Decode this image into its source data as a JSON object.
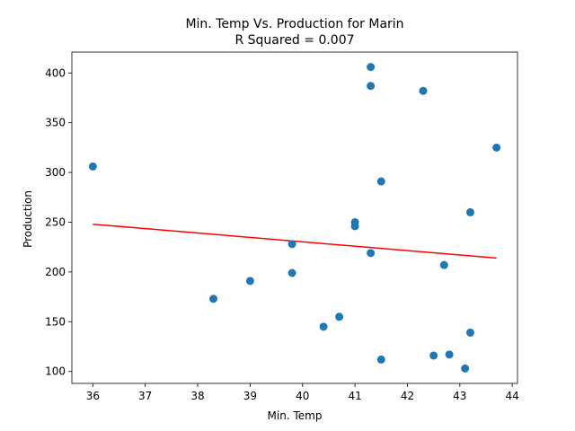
{
  "chart_data": {
    "type": "scatter",
    "title": "Min. Temp Vs. Production for Marin",
    "subtitle": "R Squared =  0.007",
    "xlabel": "Min. Temp",
    "ylabel": "Production",
    "xlim": [
      35.6,
      44.1
    ],
    "ylim": [
      88,
      421
    ],
    "xticks": [
      36,
      37,
      38,
      39,
      40,
      41,
      42,
      43,
      44
    ],
    "yticks": [
      100,
      150,
      200,
      250,
      300,
      350,
      400
    ],
    "grid": false,
    "point_color": "#1f77b4",
    "line_color": "#ff0000",
    "points": [
      {
        "x": 36.0,
        "y": 306
      },
      {
        "x": 38.3,
        "y": 173
      },
      {
        "x": 39.0,
        "y": 191
      },
      {
        "x": 39.8,
        "y": 199
      },
      {
        "x": 39.8,
        "y": 228
      },
      {
        "x": 40.4,
        "y": 145
      },
      {
        "x": 40.7,
        "y": 155
      },
      {
        "x": 41.0,
        "y": 250
      },
      {
        "x": 41.0,
        "y": 246
      },
      {
        "x": 41.3,
        "y": 406
      },
      {
        "x": 41.3,
        "y": 387
      },
      {
        "x": 41.3,
        "y": 219
      },
      {
        "x": 41.5,
        "y": 291
      },
      {
        "x": 41.5,
        "y": 112
      },
      {
        "x": 42.3,
        "y": 382
      },
      {
        "x": 42.5,
        "y": 116
      },
      {
        "x": 42.7,
        "y": 207
      },
      {
        "x": 42.8,
        "y": 117
      },
      {
        "x": 43.1,
        "y": 103
      },
      {
        "x": 43.2,
        "y": 260
      },
      {
        "x": 43.2,
        "y": 139
      },
      {
        "x": 43.7,
        "y": 325
      }
    ],
    "regression_line": [
      {
        "x": 36.0,
        "y": 248
      },
      {
        "x": 43.7,
        "y": 214
      }
    ]
  }
}
